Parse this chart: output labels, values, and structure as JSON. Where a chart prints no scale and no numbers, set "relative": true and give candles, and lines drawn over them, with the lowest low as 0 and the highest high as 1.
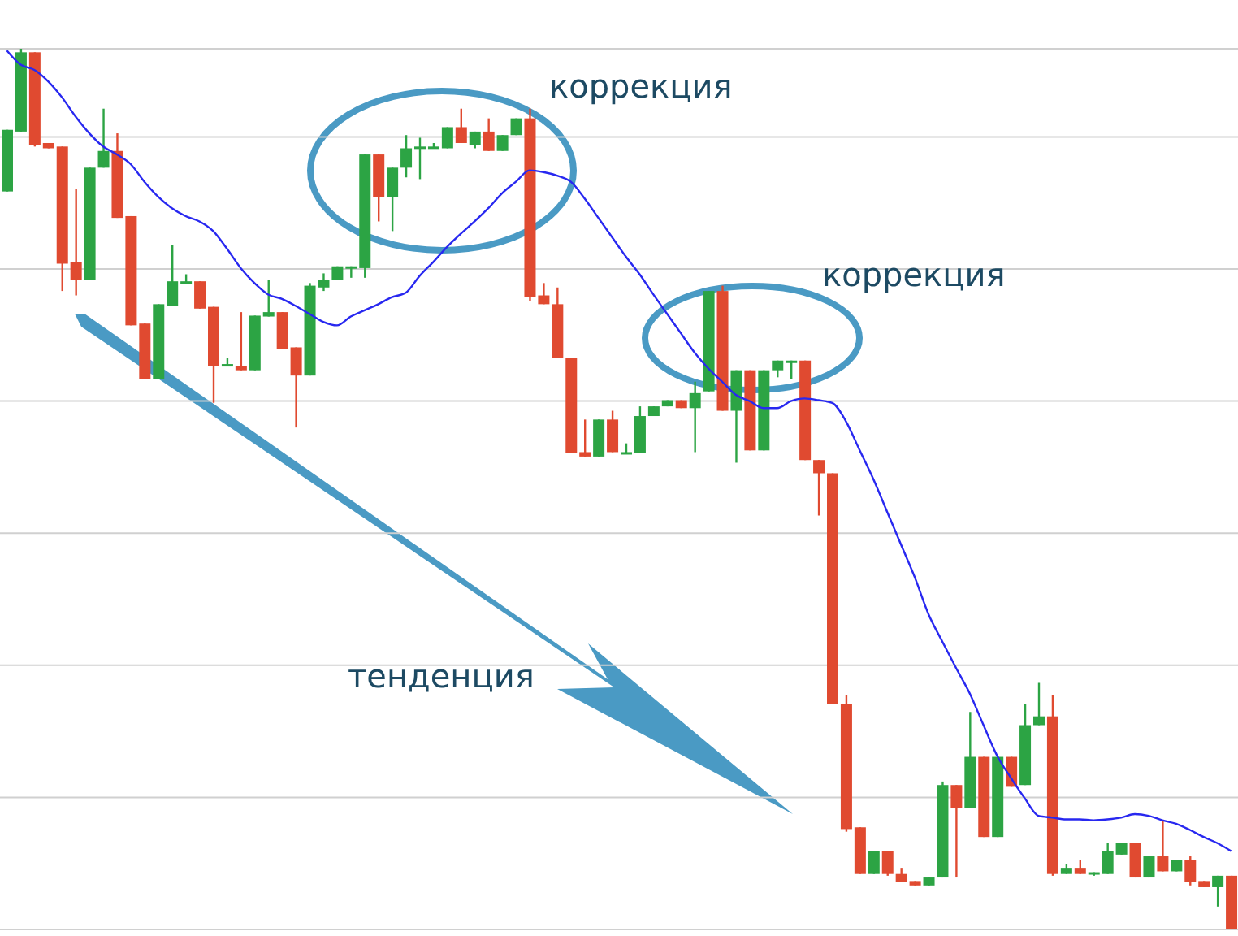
{
  "chart_data": {
    "type": "candlestick",
    "relative": true,
    "grid": "y",
    "annotations": [
      "коррекция",
      "коррекция",
      "тенденция"
    ],
    "categories": [
      null,
      null,
      null,
      null,
      null,
      null,
      null,
      null,
      null,
      null,
      null,
      null,
      null,
      null,
      null,
      null,
      null,
      null,
      null,
      null,
      null,
      null,
      null,
      null,
      null,
      null,
      null,
      null,
      null,
      null,
      null,
      null,
      null,
      null,
      null,
      null,
      null,
      null,
      null,
      null,
      null,
      null,
      null,
      null,
      null,
      null,
      null,
      null,
      null,
      null,
      null,
      null,
      null,
      null,
      null,
      null,
      null,
      null,
      null,
      null,
      null,
      null,
      null,
      null,
      null,
      null,
      null,
      null,
      null,
      null,
      null,
      null,
      null,
      null,
      null,
      null,
      null,
      null,
      null,
      null,
      null,
      null,
      null,
      null,
      null,
      null,
      null,
      null,
      null,
      null
    ],
    "ohlc": [
      [
        0.838,
        0.908,
        0.838,
        0.908
      ],
      [
        0.906,
        1,
        0.906,
        0.996
      ],
      [
        0.996,
        0.996,
        0.889,
        0.891
      ],
      [
        0.893,
        0.893,
        0.887,
        0.887
      ],
      [
        0.889,
        0.889,
        0.725,
        0.756
      ],
      [
        0.758,
        0.841,
        0.72,
        0.738
      ],
      [
        0.738,
        0.865,
        0.738,
        0.865
      ],
      [
        0.865,
        0.932,
        0.865,
        0.884
      ],
      [
        0.884,
        0.904,
        0.808,
        0.808
      ],
      [
        0.81,
        0.81,
        0.686,
        0.686
      ],
      [
        0.688,
        0.688,
        0.625,
        0.625
      ],
      [
        0.625,
        0.71,
        0.625,
        0.71
      ],
      [
        0.708,
        0.777,
        0.708,
        0.736
      ],
      [
        0.734,
        0.744,
        0.734,
        0.736
      ],
      [
        0.736,
        0.736,
        0.705,
        0.705
      ],
      [
        0.707,
        0.707,
        0.598,
        0.64
      ],
      [
        0.64,
        0.649,
        0.64,
        0.642
      ],
      [
        0.64,
        0.701,
        0.635,
        0.635
      ],
      [
        0.635,
        0.697,
        0.635,
        0.697
      ],
      [
        0.696,
        0.738,
        0.696,
        0.701
      ],
      [
        0.701,
        0.701,
        0.659,
        0.659
      ],
      [
        0.661,
        0.661,
        0.57,
        0.629
      ],
      [
        0.629,
        0.734,
        0.629,
        0.731
      ],
      [
        0.729,
        0.745,
        0.725,
        0.738
      ],
      [
        0.738,
        0.753,
        0.738,
        0.753
      ],
      [
        0.751,
        0.753,
        0.74,
        0.753
      ],
      [
        0.751,
        0.88,
        0.74,
        0.88
      ],
      [
        0.88,
        0.88,
        0.804,
        0.832
      ],
      [
        0.832,
        0.865,
        0.793,
        0.865
      ],
      [
        0.865,
        0.902,
        0.854,
        0.887
      ],
      [
        0.887,
        0.899,
        0.852,
        0.889
      ],
      [
        0.887,
        0.893,
        0.887,
        0.889
      ],
      [
        0.887,
        0.911,
        0.887,
        0.911
      ],
      [
        0.911,
        0.932,
        0.893,
        0.893
      ],
      [
        0.891,
        0.906,
        0.887,
        0.906
      ],
      [
        0.906,
        0.921,
        0.884,
        0.884
      ],
      [
        0.884,
        0.902,
        0.884,
        0.902
      ],
      [
        0.902,
        0.921,
        0.902,
        0.921
      ],
      [
        0.921,
        0.932,
        0.714,
        0.718
      ],
      [
        0.72,
        0.734,
        0.71,
        0.71
      ],
      [
        0.71,
        0.729,
        0.649,
        0.649
      ],
      [
        0.649,
        0.649,
        0.541,
        0.541
      ],
      [
        0.542,
        0.579,
        0.537,
        0.537
      ],
      [
        0.537,
        0.579,
        0.537,
        0.579
      ],
      [
        0.579,
        0.589,
        0.542,
        0.542
      ],
      [
        0.541,
        0.552,
        0.541,
        0.542
      ],
      [
        0.541,
        0.594,
        0.541,
        0.583
      ],
      [
        0.583,
        0.594,
        0.583,
        0.594
      ],
      [
        0.594,
        0.601,
        0.594,
        0.601
      ],
      [
        0.601,
        0.601,
        0.592,
        0.592
      ],
      [
        0.592,
        0.622,
        0.542,
        0.609
      ],
      [
        0.611,
        0.725,
        0.611,
        0.725
      ],
      [
        0.725,
        0.731,
        0.589,
        0.589
      ],
      [
        0.589,
        0.635,
        0.53,
        0.635
      ],
      [
        0.635,
        0.635,
        0.544,
        0.544
      ],
      [
        0.544,
        0.635,
        0.544,
        0.635
      ],
      [
        0.635,
        0.646,
        0.627,
        0.646
      ],
      [
        0.644,
        0.646,
        0.625,
        0.646
      ],
      [
        0.646,
        0.646,
        0.533,
        0.533
      ],
      [
        0.533,
        0.533,
        0.47,
        0.518
      ],
      [
        0.518,
        0.518,
        0.256,
        0.256
      ],
      [
        0.256,
        0.266,
        0.111,
        0.114
      ],
      [
        0.116,
        0.116,
        0.063,
        0.063
      ],
      [
        0.063,
        0.089,
        0.063,
        0.089
      ],
      [
        0.089,
        0.089,
        0.061,
        0.063
      ],
      [
        0.063,
        0.07,
        0.054,
        0.054
      ],
      [
        0.055,
        0.055,
        0.05,
        0.05
      ],
      [
        0.05,
        0.059,
        0.05,
        0.059
      ],
      [
        0.059,
        0.168,
        0.059,
        0.164
      ],
      [
        0.164,
        0.164,
        0.059,
        0.138
      ],
      [
        0.138,
        0.247,
        0.138,
        0.196
      ],
      [
        0.196,
        0.196,
        0.105,
        0.105
      ],
      [
        0.105,
        0.196,
        0.105,
        0.196
      ],
      [
        0.196,
        0.196,
        0.162,
        0.162
      ],
      [
        0.164,
        0.256,
        0.164,
        0.232
      ],
      [
        0.232,
        0.28,
        0.232,
        0.242
      ],
      [
        0.242,
        0.266,
        0.061,
        0.063
      ],
      [
        0.063,
        0.074,
        0.063,
        0.07
      ],
      [
        0.07,
        0.079,
        0.063,
        0.063
      ],
      [
        0.063,
        0.065,
        0.061,
        0.065
      ],
      [
        0.063,
        0.098,
        0.063,
        0.089
      ],
      [
        0.085,
        0.098,
        0.085,
        0.098
      ],
      [
        0.098,
        0.098,
        0.059,
        0.059
      ],
      [
        0.059,
        0.083,
        0.059,
        0.083
      ],
      [
        0.083,
        0.124,
        0.066,
        0.066
      ],
      [
        0.066,
        0.079,
        0.066,
        0.079
      ],
      [
        0.079,
        0.083,
        0.05,
        0.054
      ],
      [
        0.055,
        0.055,
        0.048,
        0.048
      ],
      [
        0.048,
        0.061,
        0.026,
        0.061
      ],
      [
        0.061,
        0.061,
        0,
        0
      ]
    ],
    "colors": [
      "#2ca444",
      "#2ca444",
      "#e04a30",
      "#e04a30",
      "#e04a30",
      "#e04a30",
      "#2ca444",
      "#2ca444",
      "#e04a30",
      "#e04a30",
      "#e04a30",
      "#2ca444",
      "#2ca444",
      "#2ca444",
      "#e04a30",
      "#e04a30",
      "#2ca444",
      "#e04a30",
      "#2ca444",
      "#2ca444",
      "#e04a30",
      "#e04a30",
      "#2ca444",
      "#2ca444",
      "#2ca444",
      "#2ca444",
      "#2ca444",
      "#e04a30",
      "#2ca444",
      "#2ca444",
      "#2ca444",
      "#2ca444",
      "#2ca444",
      "#e04a30",
      "#2ca444",
      "#e04a30",
      "#2ca444",
      "#2ca444",
      "#e04a30",
      "#e04a30",
      "#e04a30",
      "#e04a30",
      "#e04a30",
      "#2ca444",
      "#e04a30",
      "#2ca444",
      "#2ca444",
      "#2ca444",
      "#2ca444",
      "#e04a30",
      "#2ca444",
      "#2ca444",
      "#e04a30",
      "#2ca444",
      "#e04a30",
      "#2ca444",
      "#2ca444",
      "#2ca444",
      "#e04a30",
      "#e04a30",
      "#e04a30",
      "#e04a30",
      "#e04a30",
      "#2ca444",
      "#e04a30",
      "#e04a30",
      "#e04a30",
      "#2ca444",
      "#2ca444",
      "#e04a30",
      "#2ca444",
      "#e04a30",
      "#2ca444",
      "#e04a30",
      "#2ca444",
      "#2ca444",
      "#e04a30",
      "#2ca444",
      "#e04a30",
      "#2ca444",
      "#2ca444",
      "#2ca444",
      "#e04a30",
      "#2ca444",
      "#e04a30",
      "#2ca444",
      "#e04a30",
      "#e04a30",
      "#2ca444",
      "#e04a30"
    ],
    "series": [
      {
        "type": "line",
        "color": "#2828f0",
        "values": [
          0.998,
          0.982,
          0.976,
          0.963,
          0.945,
          0.923,
          0.904,
          0.889,
          0.88,
          0.869,
          0.849,
          0.832,
          0.819,
          0.81,
          0.804,
          0.793,
          0.773,
          0.751,
          0.734,
          0.721,
          0.716,
          0.708,
          0.699,
          0.69,
          0.686,
          0.696,
          0.703,
          0.71,
          0.718,
          0.723,
          0.742,
          0.758,
          0.775,
          0.79,
          0.804,
          0.819,
          0.836,
          0.849,
          0.862,
          0.86,
          0.856,
          0.849,
          0.83,
          0.808,
          0.786,
          0.764,
          0.744,
          0.721,
          0.699,
          0.677,
          0.655,
          0.637,
          0.622,
          0.607,
          0.6,
          0.592,
          0.592,
          0.6,
          0.603,
          0.601,
          0.598,
          0.577,
          0.544,
          0.511,
          0.474,
          0.437,
          0.4,
          0.358,
          0.327,
          0.297,
          0.268,
          0.232,
          0.197,
          0.172,
          0.149,
          0.129,
          0.127,
          0.125,
          0.125,
          0.124,
          0.125,
          0.127,
          0.131,
          0.129,
          0.124,
          0.12,
          0.113,
          0.105,
          0.098,
          0.089
        ]
      }
    ]
  }
}
